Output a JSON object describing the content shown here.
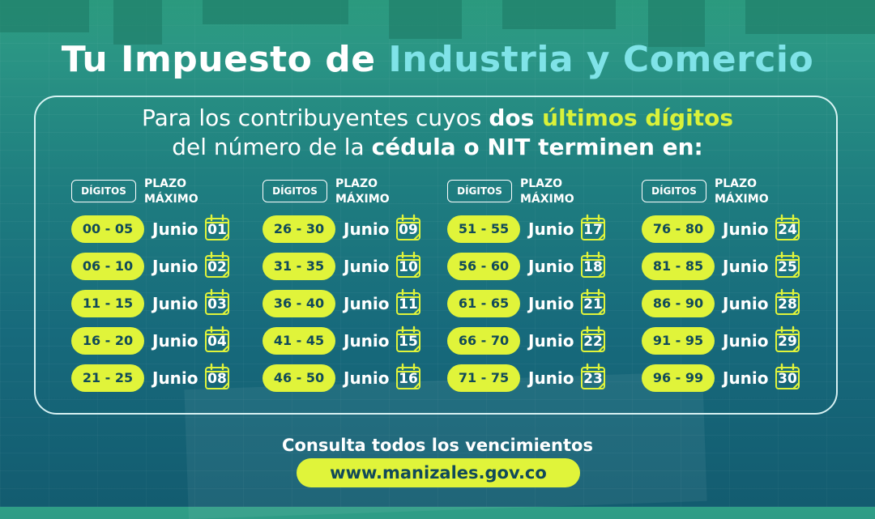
{
  "header": {
    "title_part1": "Tu Impuesto de ",
    "title_part2": "Industria y Comercio"
  },
  "intro": {
    "line1_a": "Para los contribuyentes cuyos ",
    "line1_b": "dos ",
    "line1_c": "últimos dígitos",
    "line2_a": "del número de la ",
    "line2_b": "cédula o NIT terminen en:"
  },
  "table": {
    "digits_label": "DÍGITOS",
    "deadline_label_1": "PLAZO",
    "deadline_label_2": "MÁXIMO",
    "month": "Junio",
    "columns": [
      {
        "rows": [
          {
            "range": "00 - 05",
            "day": "01"
          },
          {
            "range": "06 - 10",
            "day": "02"
          },
          {
            "range": "11 - 15",
            "day": "03"
          },
          {
            "range": "16 - 20",
            "day": "04"
          },
          {
            "range": "21 - 25",
            "day": "08"
          }
        ]
      },
      {
        "rows": [
          {
            "range": "26 - 30",
            "day": "09"
          },
          {
            "range": "31 - 35",
            "day": "10"
          },
          {
            "range": "36 - 40",
            "day": "11"
          },
          {
            "range": "41 - 45",
            "day": "15"
          },
          {
            "range": "46 - 50",
            "day": "16"
          }
        ]
      },
      {
        "rows": [
          {
            "range": "51 - 55",
            "day": "17"
          },
          {
            "range": "56 - 60",
            "day": "18"
          },
          {
            "range": "61 - 65",
            "day": "21"
          },
          {
            "range": "66 - 70",
            "day": "22"
          },
          {
            "range": "71 - 75",
            "day": "23"
          }
        ]
      },
      {
        "rows": [
          {
            "range": "76 - 80",
            "day": "24"
          },
          {
            "range": "81 - 85",
            "day": "25"
          },
          {
            "range": "86 - 90",
            "day": "28"
          },
          {
            "range": "91 - 95",
            "day": "29"
          },
          {
            "range": "96 - 99",
            "day": "30"
          }
        ]
      }
    ]
  },
  "footer": {
    "text": "Consulta todos los vencimientos",
    "url": "www.manizales.gov.co"
  },
  "colors": {
    "accent_yellow": "#e0f43a",
    "accent_cyan": "#7fe3e8",
    "pill_text": "#114a59"
  },
  "icons": {
    "calendar": "calendar-icon"
  }
}
